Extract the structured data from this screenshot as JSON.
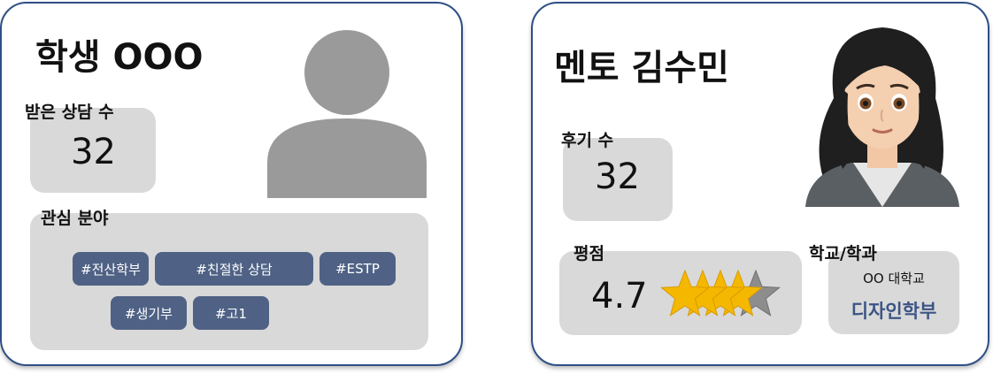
{
  "student": {
    "title": "학생 OOO",
    "consult_label": "받은 상담 수",
    "consult_count": "32",
    "interest_label": "관심 분야",
    "tags": [
      "#전산학부",
      "#친절한 상담",
      "#ESTP",
      "#생기부",
      "#고1"
    ],
    "avatar_icon": "person-placeholder-icon"
  },
  "mentor": {
    "title": "멘토 김수민",
    "review_label": "후기 수",
    "review_count": "32",
    "rating_label": "평점",
    "rating_value": "4.7",
    "rating_stars": 4.7,
    "rating_max": 5,
    "school_label": "학교/학과",
    "school_name": "OO 대학교",
    "department": "디자인학부",
    "avatar_icon": "woman-avatar-icon"
  },
  "colors": {
    "border": "#2f4f86",
    "tag_bg": "#4f6285",
    "box_bg": "#d9d9d9",
    "department_text": "#3b5585",
    "star_fill": "#f5b800"
  }
}
